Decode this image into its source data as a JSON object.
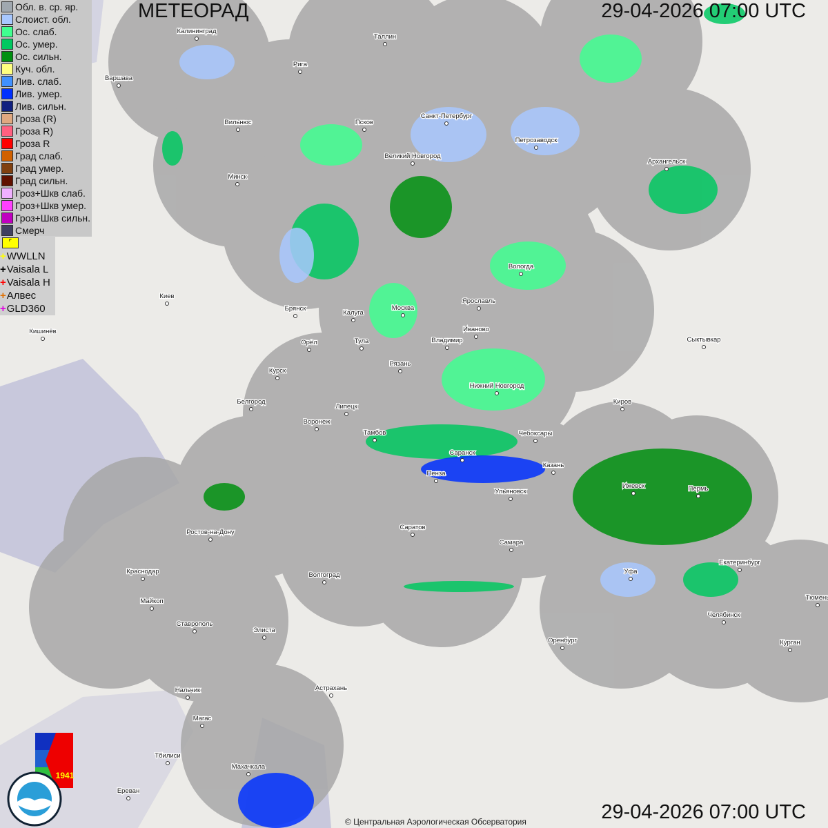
{
  "title": "МЕТЕОРАД",
  "timestamp_top": "29-04-2026  07:00 UTC",
  "timestamp_bottom": "29-04-2026  07:00 UTC",
  "copyright": "© Центральная Аэрологическая Обсерватория",
  "legend": [
    {
      "label": "Обл. в. ср. яр.",
      "color": "#a0a8b0"
    },
    {
      "label": "Слоист. обл.",
      "color": "#a8c8ff"
    },
    {
      "label": "Ос. слаб.",
      "color": "#40ff90"
    },
    {
      "label": "Ос. умер.",
      "color": "#00c860"
    },
    {
      "label": "Ос. сильн.",
      "color": "#009010"
    },
    {
      "label": "Куч. обл.",
      "color": "#ffff80"
    },
    {
      "label": "Лив. слаб.",
      "color": "#4090ff"
    },
    {
      "label": "Лив. умер.",
      "color": "#0030ff"
    },
    {
      "label": "Лив. сильн.",
      "color": "#102080"
    },
    {
      "label": "Гроза (R)",
      "color": "#e0a880"
    },
    {
      "label": "Гроза R)",
      "color": "#ff6080"
    },
    {
      "label": "Гроза R",
      "color": "#ff0000"
    },
    {
      "label": "Град слаб.",
      "color": "#d06000"
    },
    {
      "label": "Град умер.",
      "color": "#804010"
    },
    {
      "label": "Град сильн.",
      "color": "#601000"
    },
    {
      "label": "Гроз+Шкв слаб.",
      "color": "#f0b0ff"
    },
    {
      "label": "Гроз+Шкв умер.",
      "color": "#ff40ff"
    },
    {
      "label": "Гроз+Шкв сильн.",
      "color": "#c000c0"
    },
    {
      "label": "Смерч",
      "color": "#404060"
    }
  ],
  "lightning_toggle_icon": "flag-icon",
  "lightning": [
    {
      "label": "WWLLN",
      "color": "#ffff00"
    },
    {
      "label": "Vaisala L",
      "color": "#000000"
    },
    {
      "label": "Vaisala H",
      "color": "#ff0000"
    },
    {
      "label": "Алвес",
      "color": "#e07000"
    },
    {
      "label": "GLD360",
      "color": "#e000e0"
    }
  ],
  "logos": {
    "cao": "ЦАО 1941",
    "roshydromet": "РОСГИДРОМЕТ ROSHYDROMET"
  },
  "cities": [
    "Калининград",
    "Таллин",
    "Рига",
    "Варшава",
    "Санкт-Петербург",
    "Псков",
    "Вильнюс",
    "Петрозаводск",
    "Архангельск",
    "Великий Новгород",
    "Минск",
    "Вологда",
    "Ярославль",
    "Киев",
    "Брянск",
    "Калуга",
    "Москва",
    "Иваново",
    "Кишинёв",
    "Орёл",
    "Тула",
    "Владимир",
    "Сыктывкар",
    "Рязань",
    "Курск",
    "Нижний Новгород",
    "Киров",
    "Белгород",
    "Липецк",
    "Воронеж",
    "Тамбов",
    "Чебоксары",
    "Саранск",
    "Казань",
    "Пенза",
    "Ижевск",
    "Пермь",
    "Ульяновск",
    "Ростов-на-Дону",
    "Саратов",
    "Самара",
    "Краснодар",
    "Уфа",
    "Екатеринбург",
    "Волгоград",
    "Майкоп",
    "Тюмень",
    "Челябинск",
    "Ставрополь",
    "Элиста",
    "Оренбург",
    "Курган",
    "Астрахань",
    "Нальчик",
    "Магас",
    "Тбилиси",
    "Махачкала",
    "Ереван"
  ]
}
